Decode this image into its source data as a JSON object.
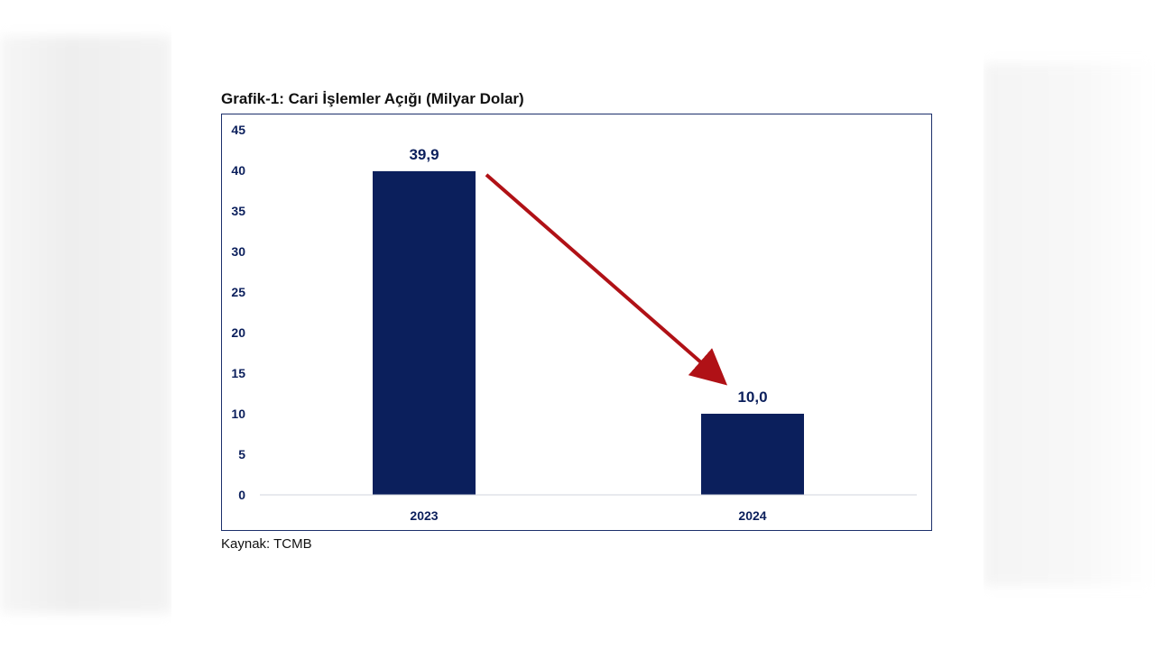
{
  "title": "Grafik-1: Cari İşlemler Açığı (Milyar Dolar)",
  "source": "Kaynak: TCMB",
  "colors": {
    "bar": "#0b1f5c",
    "arrow": "#b01116",
    "frame": "#1c2f6b",
    "tick_text": "#0b1f5c"
  },
  "chart_data": {
    "type": "bar",
    "categories": [
      "2023",
      "2024"
    ],
    "values": [
      39.9,
      10.0
    ],
    "data_labels": [
      "39,9",
      "10,0"
    ],
    "ylim": [
      0,
      45
    ],
    "yticks": [
      0,
      5,
      10,
      15,
      20,
      25,
      30,
      35,
      40,
      45
    ],
    "grid": false,
    "annotation": "downward red arrow from 2023 bar to 2024 bar"
  }
}
